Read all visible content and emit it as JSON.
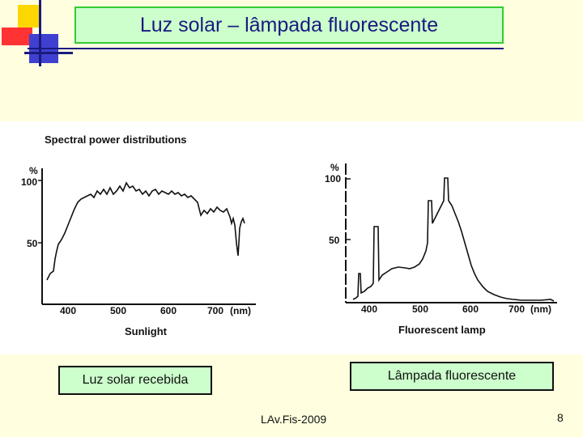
{
  "slide": {
    "title": "Luz solar – lâmpada fluorescente",
    "footer_center": "LAv.Fis-2009",
    "page_number": "8"
  },
  "figure": {
    "heading": "Spectral power distributions",
    "sunlight": {
      "y_unit": "%",
      "y_ticks": [
        "100",
        "50"
      ],
      "x_ticks": [
        "400",
        "500",
        "600",
        "700"
      ],
      "x_unit": "(nm)",
      "caption": "Sunlight"
    },
    "fluorescent": {
      "y_unit": "%",
      "y_ticks": [
        "100",
        "50"
      ],
      "x_ticks": [
        "400",
        "500",
        "600",
        "700"
      ],
      "x_unit": "(nm)",
      "caption": "Fluorescent lamp"
    }
  },
  "labels": {
    "left": "Luz solar recebida",
    "right": "Lâmpada fluorescente"
  },
  "colors": {
    "background": "#ffffe0",
    "title_fill": "#ccffcc",
    "title_border": "#33cc33",
    "title_text": "#1a1a80",
    "deco_yellow": "#ffd700",
    "deco_red": "#ff3333",
    "deco_blue": "#3333cc"
  }
}
